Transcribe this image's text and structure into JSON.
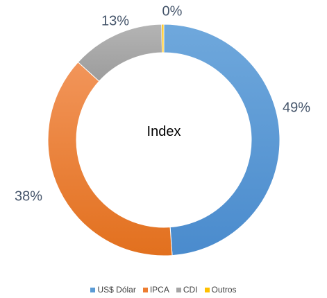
{
  "chart_data": {
    "type": "pie",
    "donut": true,
    "center_label": "Index",
    "slices": [
      {
        "name": "US$ Dólar",
        "value": 49,
        "label": "49%",
        "color": "#5b9bd5"
      },
      {
        "name": "IPCA",
        "value": 38,
        "label": "38%",
        "color": "#ed7d31"
      },
      {
        "name": "CDI",
        "value": 13,
        "label": "13%",
        "color": "#a5a5a5"
      },
      {
        "name": "Outros",
        "value": 0.3,
        "label": "0%",
        "color": "#ffc000"
      }
    ],
    "legend_position": "bottom"
  }
}
